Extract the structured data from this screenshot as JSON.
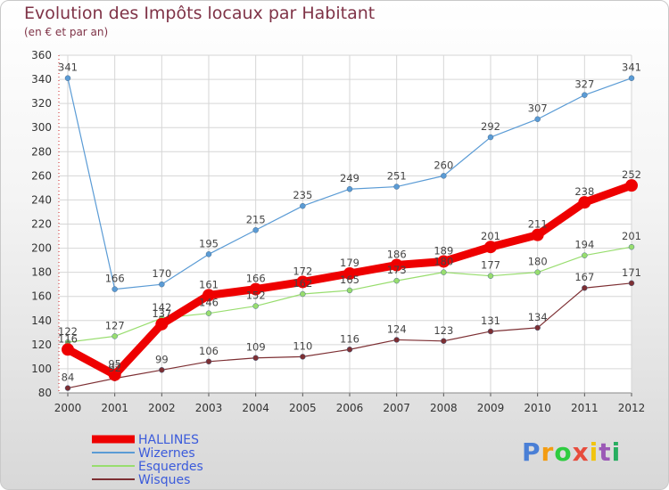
{
  "title": "Evolution des Impôts locaux par Habitant",
  "subtitle": "(en € et par an)",
  "brand": {
    "letters": [
      "P",
      "r",
      "o",
      "x",
      "i",
      "t",
      "i"
    ],
    "colors": [
      "#4a7fd6",
      "#f39c12",
      "#2ecc40",
      "#e74c3c",
      "#f1c40f",
      "#9b59b6",
      "#27ae60"
    ]
  },
  "chart_data": {
    "type": "line",
    "categories": [
      "2000",
      "2001",
      "2002",
      "2003",
      "2004",
      "2005",
      "2006",
      "2007",
      "2008",
      "2009",
      "2010",
      "2011",
      "2012"
    ],
    "ylim": [
      80,
      360
    ],
    "yticks": [
      80,
      100,
      120,
      140,
      160,
      180,
      200,
      220,
      240,
      260,
      280,
      300,
      320,
      340,
      360
    ],
    "grid": true,
    "legend_position": "bottom-left",
    "series": [
      {
        "name": "HALLINES",
        "color": "#ee0000",
        "values": [
          116,
          95,
          137,
          161,
          166,
          172,
          179,
          186,
          189,
          201,
          211,
          238,
          252
        ],
        "labels": [
          "116",
          "95",
          "137",
          "161",
          "166",
          "172",
          "179",
          "186",
          "189",
          "201",
          "211",
          "238",
          "252"
        ]
      },
      {
        "name": "Wizernes",
        "color": "#5a9bd5",
        "values": [
          341,
          166,
          170,
          195,
          215,
          235,
          249,
          251,
          260,
          292,
          307,
          327,
          341
        ],
        "labels": [
          "341",
          "166",
          "170",
          "195",
          "215",
          "235",
          "249",
          "251",
          "260",
          "292",
          "307",
          "327",
          "341"
        ]
      },
      {
        "name": "Esquerdes",
        "color": "#98dd6e",
        "values": [
          122,
          127,
          142,
          146,
          152,
          162,
          165,
          173,
          180,
          177,
          180,
          194,
          201
        ],
        "labels": [
          "122",
          "127",
          "142",
          "146",
          "152",
          "162",
          "165",
          "173",
          "180",
          "177",
          "180",
          "194",
          "201"
        ]
      },
      {
        "name": "Wisques",
        "color": "#7d2f33",
        "values": [
          84,
          92,
          99,
          106,
          109,
          110,
          116,
          124,
          123,
          131,
          134,
          167,
          171
        ],
        "labels": [
          "84",
          "92",
          "99",
          "106",
          "109",
          "110",
          "116",
          "124",
          "123",
          "131",
          "134",
          "167",
          "171"
        ]
      }
    ]
  }
}
